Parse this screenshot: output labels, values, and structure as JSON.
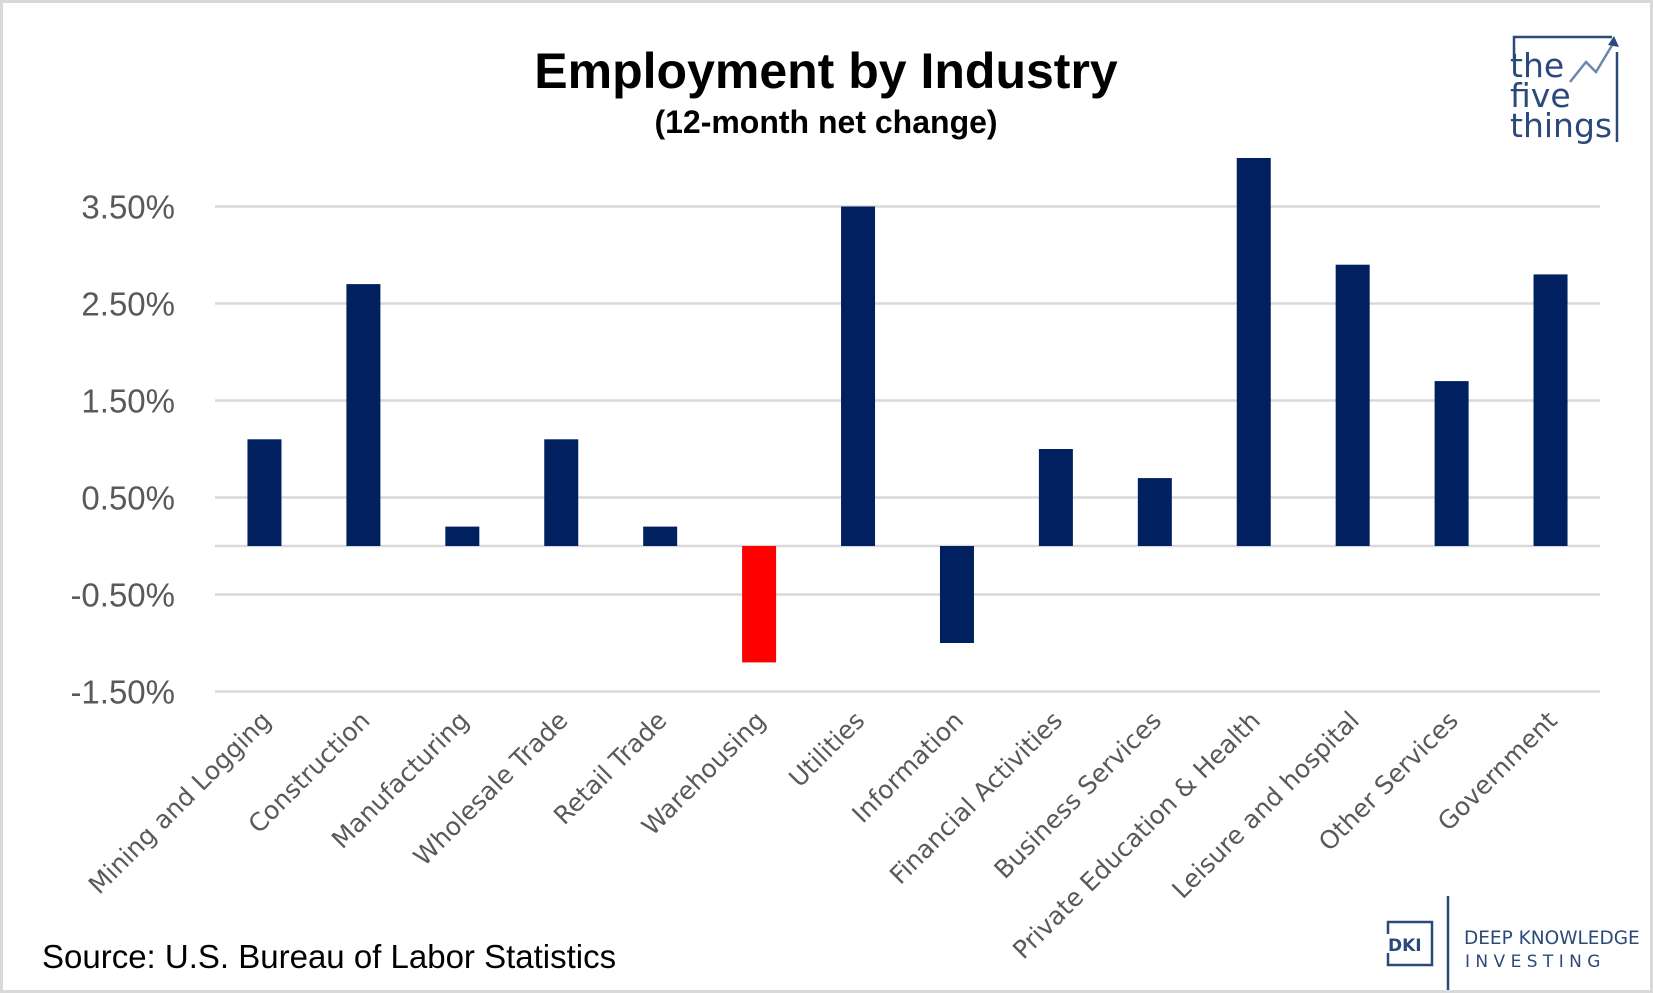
{
  "chart_data": {
    "type": "bar",
    "title": "Employment by Industry",
    "subtitle": "(12-month net change)",
    "xlabel": "",
    "ylabel": "",
    "categories": [
      "Mining and Logging",
      "Construction",
      "Manufacturing",
      "Wholesale Trade",
      "Retail Trade",
      "Warehousing",
      "Utilities",
      "Information",
      "Financial Activities",
      "Business Services",
      "Private Education & Health",
      "Leisure and hospital",
      "Other Services",
      "Government"
    ],
    "series": [
      {
        "name": "12-month net change (%)",
        "values": [
          1.1,
          2.7,
          0.2,
          1.1,
          0.2,
          -1.2,
          3.5,
          -1.0,
          1.0,
          0.7,
          4.0,
          2.9,
          1.7,
          2.8
        ]
      }
    ],
    "highlighted_category": "Warehousing",
    "colors": {
      "default": "#002060",
      "highlight": "#ff0000",
      "grid": "#d9d9d9",
      "tick_text": "#595959"
    },
    "yticks": [
      3.5,
      2.5,
      1.5,
      0.5,
      -0.5,
      -1.5
    ],
    "ytick_labels": [
      "3.50%",
      "2.50%",
      "1.50%",
      "0.50%",
      "-0.50%",
      "-1.50%"
    ],
    "ylim": [
      -1.5,
      4.0
    ],
    "grid": true,
    "legend": "none",
    "source": "Source: U.S. Bureau of Labor Statistics"
  },
  "branding": {
    "top_logo": {
      "lines": [
        "the",
        "five",
        "things"
      ],
      "color": "#2b4a7a"
    },
    "bottom_logo": {
      "badge": "DKI",
      "line1": "DEEP KNOWLEDGE",
      "line2": "I N V E S T I N G",
      "color": "#2b4a7a"
    }
  }
}
